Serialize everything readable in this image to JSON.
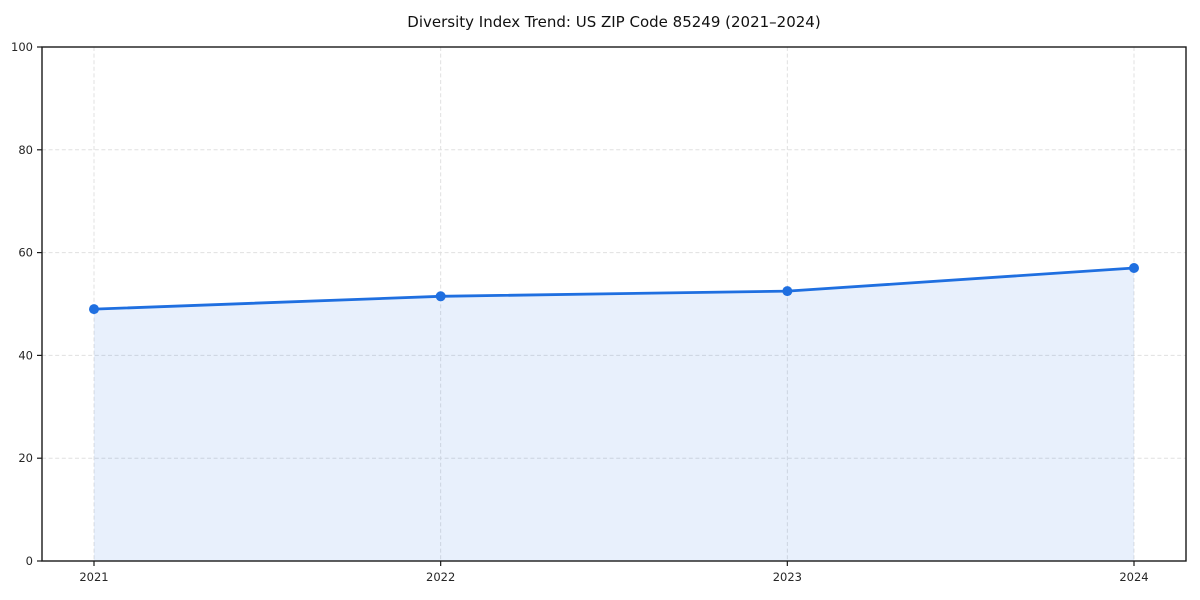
{
  "chart_data": {
    "type": "area",
    "title": "Diversity Index Trend: US ZIP Code 85249 (2021–2024)",
    "categories": [
      "2021",
      "2022",
      "2023",
      "2024"
    ],
    "values": [
      49,
      51.5,
      52.5,
      57
    ],
    "series": [
      {
        "name": "Diversity Index",
        "values": [
          49,
          51.5,
          52.5,
          57
        ]
      }
    ],
    "xlabel": "",
    "ylabel": "",
    "ylim": [
      0,
      100
    ],
    "yticks": [
      0,
      20,
      40,
      60,
      80,
      100
    ],
    "grid": "dashed-both-axes",
    "legend": "none",
    "colors": {
      "line": "#1f6fe0",
      "marker": "#1f6fe0",
      "fill": "#1f6fe0",
      "fill_opacity": 0.1,
      "grid": "#e0e0e0",
      "axis": "#1a1a1a",
      "tick_label": "#262626",
      "background": "#ffffff"
    }
  }
}
